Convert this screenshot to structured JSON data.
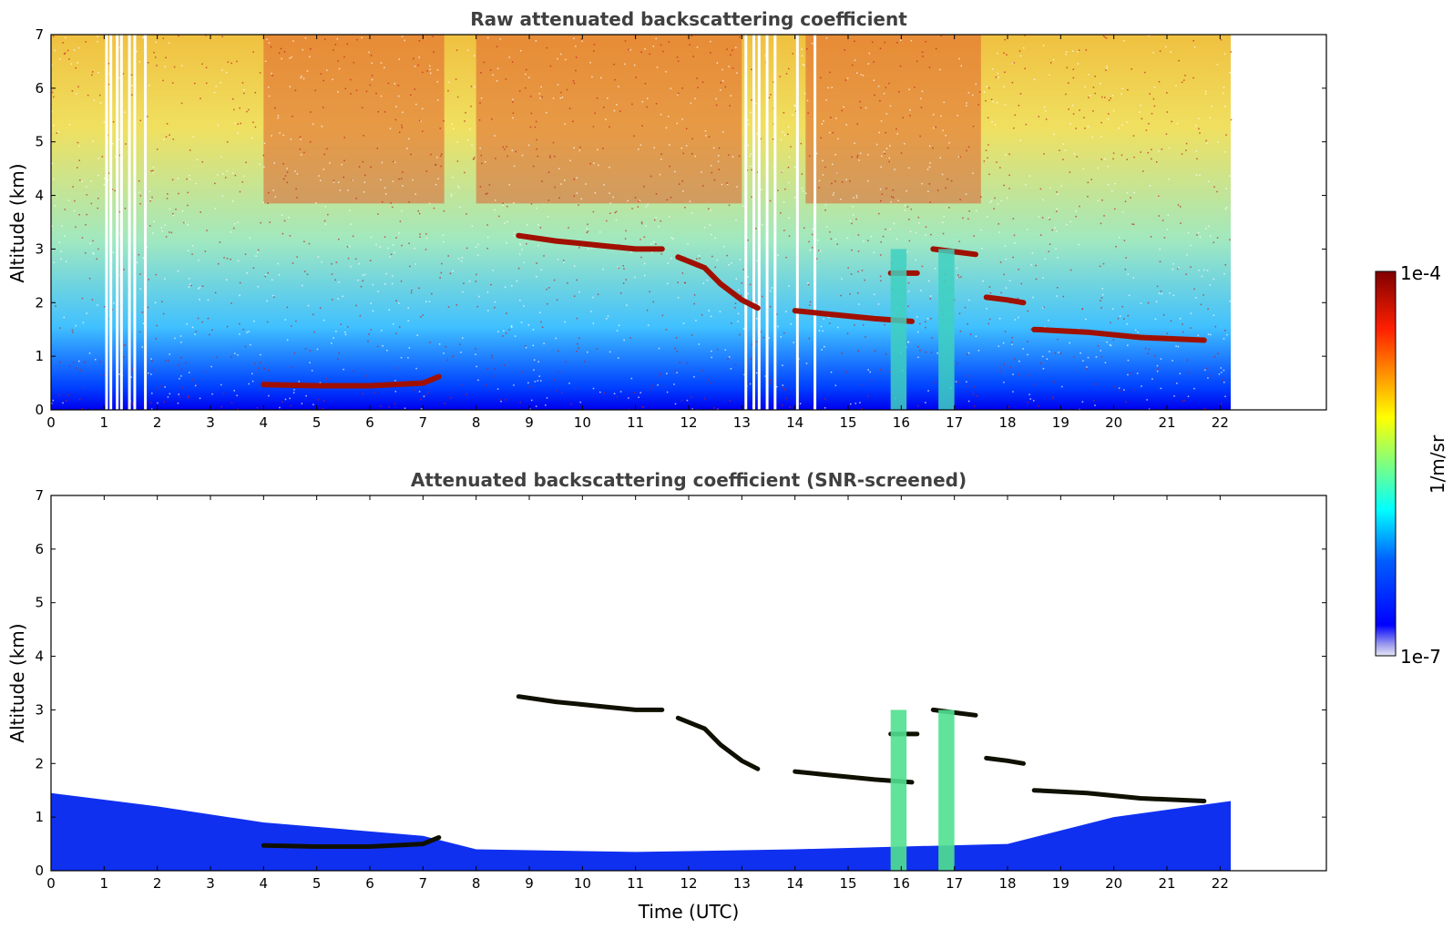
{
  "chart_data": [
    {
      "type": "heatmap",
      "title": "Raw attenuated backscattering coefficient",
      "xlabel": "",
      "ylabel": "Altitude (km)",
      "xlim": [
        0,
        24
      ],
      "ylim": [
        0,
        7
      ],
      "xticks": [
        "0",
        "1",
        "2",
        "3",
        "4",
        "5",
        "6",
        "7",
        "8",
        "9",
        "10",
        "11",
        "12",
        "13",
        "14",
        "15",
        "16",
        "17",
        "18",
        "19",
        "20",
        "21",
        "22"
      ],
      "yticks": [
        "0",
        "1",
        "2",
        "3",
        "4",
        "5",
        "6",
        "7"
      ],
      "data_extent_time": [
        0,
        22.2
      ],
      "screened": false,
      "cloud_layers": [
        {
          "x": [
            4.0,
            5.0,
            6.0,
            7.0,
            7.3
          ],
          "y": [
            0.47,
            0.45,
            0.45,
            0.5,
            0.62
          ]
        },
        {
          "x": [
            8.8,
            9.5,
            10.0,
            10.5,
            11.0,
            11.5
          ],
          "y": [
            3.25,
            3.15,
            3.1,
            3.05,
            3.0,
            3.0
          ]
        },
        {
          "x": [
            11.8,
            12.3,
            12.6,
            13.0,
            13.3
          ],
          "y": [
            2.85,
            2.65,
            2.35,
            2.05,
            1.9
          ]
        },
        {
          "x": [
            14.0,
            14.5,
            15.0,
            15.5,
            16.2
          ],
          "y": [
            1.85,
            1.8,
            1.75,
            1.7,
            1.65
          ]
        },
        {
          "x": [
            15.8,
            16.3
          ],
          "y": [
            2.55,
            2.55
          ]
        },
        {
          "x": [
            16.6,
            17.0,
            17.4
          ],
          "y": [
            3.0,
            2.95,
            2.9
          ]
        },
        {
          "x": [
            17.6,
            18.0,
            18.3
          ],
          "y": [
            2.1,
            2.05,
            2.0
          ]
        },
        {
          "x": [
            18.5,
            19.5,
            20.5,
            21.7
          ],
          "y": [
            1.5,
            1.45,
            1.35,
            1.3
          ]
        }
      ],
      "data_gaps_time": [
        1.02,
        1.1,
        1.22,
        1.3,
        1.45,
        1.55,
        1.75,
        13.05,
        13.2,
        13.3,
        13.45,
        13.6,
        14.02,
        14.35
      ]
    },
    {
      "type": "heatmap",
      "title": "Attenuated backscattering coefficient (SNR-screened)",
      "xlabel": "Time (UTC)",
      "ylabel": "Altitude (km)",
      "xlim": [
        0,
        24
      ],
      "ylim": [
        0,
        7
      ],
      "xticks": [
        "0",
        "1",
        "2",
        "3",
        "4",
        "5",
        "6",
        "7",
        "8",
        "9",
        "10",
        "11",
        "12",
        "13",
        "14",
        "15",
        "16",
        "17",
        "18",
        "19",
        "20",
        "21",
        "22"
      ],
      "yticks": [
        "0",
        "1",
        "2",
        "3",
        "4",
        "5",
        "6",
        "7"
      ],
      "data_extent_time": [
        0,
        22.2
      ],
      "screened": true,
      "boundary_layer_top": {
        "x": [
          0,
          2,
          4,
          7,
          8,
          11,
          14,
          16,
          18,
          20,
          22.2
        ],
        "y": [
          1.45,
          1.2,
          0.9,
          0.65,
          0.4,
          0.35,
          0.4,
          0.45,
          0.5,
          1.0,
          1.3
        ]
      }
    }
  ],
  "colorbar": {
    "unit_label": "1/m/sr",
    "max_label": "1e-4",
    "min_label": "1e-7",
    "colormap": "jet",
    "colors": [
      "#e6e6f5",
      "#0000ff",
      "#00ffff",
      "#ffff00",
      "#ff0000",
      "#800000"
    ]
  }
}
